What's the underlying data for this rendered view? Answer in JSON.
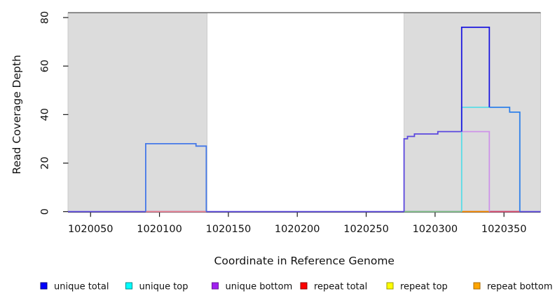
{
  "chart_data": {
    "type": "line",
    "title": "",
    "xlabel": "Coordinate in Reference Genome",
    "ylabel": "Read Coverage Depth",
    "xlim": [
      1020033.6,
      1020376.6
    ],
    "ylim": [
      0,
      82
    ],
    "x_ticks": [
      1020050,
      1020100,
      1020150,
      1020200,
      1020250,
      1020300,
      1020350
    ],
    "y_ticks": [
      0,
      20,
      40,
      60,
      80
    ],
    "grid": false,
    "legend_position": "bottom",
    "shade_color": "#DCDCDC",
    "shade_border": "#C2C2C2",
    "shaded_regions": [
      {
        "name": "repeat-region-left",
        "x0": 1020033.6,
        "x1": 1020134.5
      },
      {
        "name": "repeat-region-right",
        "x0": 1020277.5,
        "x1": 1020376.6
      }
    ],
    "series": [
      {
        "name": "unique total",
        "color": "#0000FF",
        "points": [
          [
            1020033.6,
            0
          ],
          [
            1020090,
            0
          ],
          [
            1020090,
            28
          ],
          [
            1020126.5,
            28
          ],
          [
            1020126.5,
            27
          ],
          [
            1020134,
            27
          ],
          [
            1020134,
            0
          ],
          [
            1020277.5,
            0
          ],
          [
            1020277.5,
            30
          ],
          [
            1020280,
            30
          ],
          [
            1020280,
            31
          ],
          [
            1020285,
            31
          ],
          [
            1020285,
            32
          ],
          [
            1020302,
            32
          ],
          [
            1020302,
            33
          ],
          [
            1020319.3,
            33
          ],
          [
            1020319.3,
            76
          ],
          [
            1020339.4,
            76
          ],
          [
            1020339.4,
            43
          ],
          [
            1020354.1,
            43
          ],
          [
            1020354.1,
            41
          ],
          [
            1020361.5,
            41
          ],
          [
            1020361.5,
            0
          ],
          [
            1020376.6,
            0
          ]
        ]
      },
      {
        "name": "unique top",
        "color": "#00FFFF",
        "points": [
          [
            1020033.6,
            0
          ],
          [
            1020319.3,
            0
          ],
          [
            1020319.3,
            43
          ],
          [
            1020354.1,
            43
          ],
          [
            1020354.1,
            41
          ],
          [
            1020361.5,
            41
          ],
          [
            1020361.5,
            0
          ],
          [
            1020376.6,
            0
          ]
        ]
      },
      {
        "name": "unique bottom",
        "color": "#A020F0",
        "points": [
          [
            1020033.6,
            0
          ],
          [
            1020277.5,
            0
          ],
          [
            1020277.5,
            30
          ],
          [
            1020280,
            30
          ],
          [
            1020280,
            31
          ],
          [
            1020285,
            31
          ],
          [
            1020285,
            32
          ],
          [
            1020302,
            32
          ],
          [
            1020302,
            33
          ],
          [
            1020339.4,
            33
          ],
          [
            1020339.4,
            0
          ],
          [
            1020376.6,
            0
          ]
        ]
      },
      {
        "name": "repeat total",
        "color": "#FF0000",
        "points": [
          [
            1020033.6,
            0
          ],
          [
            1020376.6,
            0
          ]
        ]
      },
      {
        "name": "repeat top",
        "color": "#FFFF00",
        "points": [
          [
            1020033.6,
            0
          ],
          [
            1020376.6,
            0
          ]
        ]
      },
      {
        "name": "repeat bottom",
        "color": "#FFA500",
        "points": [
          [
            1020033.6,
            0
          ],
          [
            1020376.6,
            0
          ]
        ]
      }
    ],
    "rendered_lines": [
      {
        "name": "baseline-zero",
        "color": "#6A58E6",
        "points": [
          [
            1020033.6,
            0
          ],
          [
            1020376.6,
            0
          ]
        ]
      },
      {
        "name": "repeat-baseline-left",
        "color": "#F28A96",
        "points": [
          [
            1020090,
            0
          ],
          [
            1020134,
            0
          ]
        ]
      },
      {
        "name": "repeat-baseline-green",
        "color": "#8CC98C",
        "points": [
          [
            1020277.5,
            0
          ],
          [
            1020319.3,
            0
          ]
        ]
      },
      {
        "name": "repeat-baseline-orange",
        "color": "#FF9200",
        "points": [
          [
            1020319.3,
            0
          ],
          [
            1020339.4,
            0
          ]
        ]
      },
      {
        "name": "repeat-baseline-red",
        "color": "#E25672",
        "points": [
          [
            1020339.4,
            0
          ],
          [
            1020361.5,
            0
          ]
        ]
      },
      {
        "name": "unique-bottom-steps",
        "color": "#5A47DE",
        "points": [
          [
            1020277.5,
            0
          ],
          [
            1020277.5,
            30
          ],
          [
            1020280,
            30
          ],
          [
            1020280,
            31
          ],
          [
            1020285,
            31
          ],
          [
            1020285,
            32
          ],
          [
            1020302,
            32
          ],
          [
            1020302,
            33
          ],
          [
            1020319.3,
            33
          ]
        ]
      },
      {
        "name": "unique-top-cyan",
        "color": "#59DCE6",
        "points": [
          [
            1020319.3,
            0
          ],
          [
            1020319.3,
            43
          ],
          [
            1020339.4,
            43
          ]
        ]
      },
      {
        "name": "unique-bottom-violet",
        "color": "#CE93E9",
        "points": [
          [
            1020319.3,
            33
          ],
          [
            1020339.4,
            33
          ],
          [
            1020339.4,
            0
          ]
        ]
      },
      {
        "name": "unique-total-peak",
        "color": "#1D18DF",
        "points": [
          [
            1020319.3,
            33
          ],
          [
            1020319.3,
            76
          ],
          [
            1020339.4,
            76
          ],
          [
            1020339.4,
            43
          ]
        ]
      },
      {
        "name": "unique-total-shelf",
        "color": "#2F80EA",
        "points": [
          [
            1020339.4,
            43
          ],
          [
            1020354.1,
            43
          ],
          [
            1020354.1,
            41
          ],
          [
            1020361.5,
            41
          ],
          [
            1020361.5,
            0
          ]
        ]
      },
      {
        "name": "unique-total-left-peak",
        "color": "#4478E8",
        "points": [
          [
            1020090,
            0
          ],
          [
            1020090,
            28
          ],
          [
            1020126.5,
            28
          ],
          [
            1020126.5,
            27
          ],
          [
            1020134,
            27
          ],
          [
            1020134,
            0
          ]
        ]
      }
    ],
    "legend": [
      {
        "label": "unique total",
        "fill": "#0000FF",
        "border": "#000080"
      },
      {
        "label": "unique top",
        "fill": "#00FFFF",
        "border": "#008B8B"
      },
      {
        "label": "unique bottom",
        "fill": "#A020F0",
        "border": "#6A1B9A"
      },
      {
        "label": "repeat total",
        "fill": "#FF0000",
        "border": "#8B0000"
      },
      {
        "label": "repeat top",
        "fill": "#FFFF00",
        "border": "#9B9B00"
      },
      {
        "label": "repeat bottom",
        "fill": "#FFA500",
        "border": "#A86A00"
      }
    ]
  }
}
